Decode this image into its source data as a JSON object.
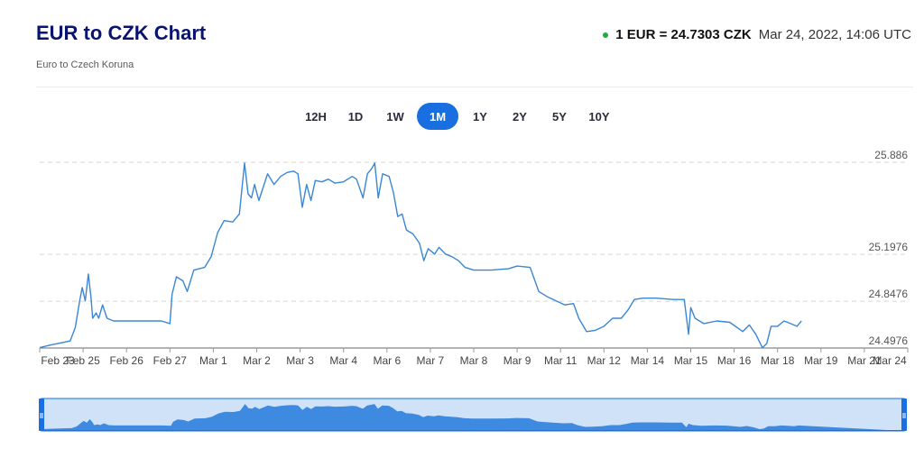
{
  "header": {
    "title": "EUR to CZK Chart",
    "subtitle": "Euro to Czech Koruna",
    "rate_value": "1 EUR = 24.7303 CZK",
    "rate_time": "Mar 24, 2022, 14:06 UTC"
  },
  "range_buttons": [
    {
      "label": "12H",
      "active": false
    },
    {
      "label": "1D",
      "active": false
    },
    {
      "label": "1W",
      "active": false
    },
    {
      "label": "1M",
      "active": true
    },
    {
      "label": "1Y",
      "active": false
    },
    {
      "label": "2Y",
      "active": false
    },
    {
      "label": "5Y",
      "active": false
    },
    {
      "label": "10Y",
      "active": false
    }
  ],
  "colors": {
    "line": "#3a86d4",
    "accent": "#1a6fe0",
    "navigator_fill": "#3d8ae0",
    "navigator_bg": "#cfe2f8",
    "live_dot": "#1fae3c"
  },
  "chart_data": {
    "type": "line",
    "title": "EUR to CZK Chart",
    "xlabel": "",
    "ylabel": "",
    "ylim": [
      24.4976,
      25.886
    ],
    "y_ticks": [
      "25.886",
      "25.1976",
      "24.8476",
      "24.4976"
    ],
    "x_ticks": [
      "Feb 23",
      "Feb 25",
      "Feb 26",
      "Feb 27",
      "Mar 1",
      "Mar 2",
      "Mar 3",
      "Mar 4",
      "Mar 6",
      "Mar 7",
      "Mar 8",
      "Mar 9",
      "Mar 11",
      "Mar 12",
      "Mar 14",
      "Mar 15",
      "Mar 16",
      "Mar 18",
      "Mar 19",
      "Mar 21",
      "Mar 24"
    ],
    "grid": true,
    "series": [
      {
        "values": [
          [
            0,
            24.5
          ],
          [
            0.25,
            24.52
          ],
          [
            0.7,
            24.55
          ],
          [
            0.82,
            24.65
          ],
          [
            0.92,
            24.85
          ],
          [
            0.98,
            24.95
          ],
          [
            1.05,
            24.85
          ],
          [
            1.12,
            25.05
          ],
          [
            1.18,
            24.88
          ],
          [
            1.22,
            24.72
          ],
          [
            1.3,
            24.76
          ],
          [
            1.36,
            24.72
          ],
          [
            1.45,
            24.82
          ],
          [
            1.55,
            24.72
          ],
          [
            1.7,
            24.7
          ],
          [
            2.3,
            24.7
          ],
          [
            2.8,
            24.7
          ],
          [
            3.0,
            24.68
          ],
          [
            3.05,
            24.9
          ],
          [
            3.15,
            25.03
          ],
          [
            3.3,
            25.0
          ],
          [
            3.4,
            24.92
          ],
          [
            3.55,
            25.08
          ],
          [
            3.8,
            25.1
          ],
          [
            3.95,
            25.18
          ],
          [
            4.1,
            25.36
          ],
          [
            4.25,
            25.45
          ],
          [
            4.45,
            25.44
          ],
          [
            4.6,
            25.5
          ],
          [
            4.72,
            25.88
          ],
          [
            4.8,
            25.65
          ],
          [
            4.88,
            25.62
          ],
          [
            4.95,
            25.72
          ],
          [
            5.05,
            25.6
          ],
          [
            5.15,
            25.7
          ],
          [
            5.25,
            25.8
          ],
          [
            5.4,
            25.72
          ],
          [
            5.55,
            25.78
          ],
          [
            5.7,
            25.81
          ],
          [
            5.85,
            25.82
          ],
          [
            5.95,
            25.8
          ],
          [
            6.05,
            25.55
          ],
          [
            6.15,
            25.72
          ],
          [
            6.25,
            25.6
          ],
          [
            6.35,
            25.75
          ],
          [
            6.5,
            25.74
          ],
          [
            6.65,
            25.76
          ],
          [
            6.8,
            25.73
          ],
          [
            7.0,
            25.74
          ],
          [
            7.2,
            25.78
          ],
          [
            7.3,
            25.76
          ],
          [
            7.45,
            25.62
          ],
          [
            7.55,
            25.8
          ],
          [
            7.65,
            25.84
          ],
          [
            7.72,
            25.88
          ],
          [
            7.8,
            25.62
          ],
          [
            7.9,
            25.8
          ],
          [
            8.05,
            25.78
          ],
          [
            8.15,
            25.66
          ],
          [
            8.25,
            25.48
          ],
          [
            8.35,
            25.5
          ],
          [
            8.45,
            25.38
          ],
          [
            8.6,
            25.35
          ],
          [
            8.75,
            25.28
          ],
          [
            8.85,
            25.15
          ],
          [
            8.95,
            25.24
          ],
          [
            9.1,
            25.2
          ],
          [
            9.2,
            25.25
          ],
          [
            9.35,
            25.2
          ],
          [
            9.5,
            25.18
          ],
          [
            9.65,
            25.15
          ],
          [
            9.8,
            25.1
          ],
          [
            10.0,
            25.08
          ],
          [
            10.4,
            25.08
          ],
          [
            10.8,
            25.09
          ],
          [
            11.0,
            25.11
          ],
          [
            11.3,
            25.1
          ],
          [
            11.5,
            24.92
          ],
          [
            11.7,
            24.88
          ],
          [
            11.9,
            24.85
          ],
          [
            12.1,
            24.82
          ],
          [
            12.3,
            24.83
          ],
          [
            12.42,
            24.72
          ],
          [
            12.6,
            24.62
          ],
          [
            12.8,
            24.63
          ],
          [
            13.0,
            24.66
          ],
          [
            13.2,
            24.72
          ],
          [
            13.4,
            24.72
          ],
          [
            13.55,
            24.78
          ],
          [
            13.7,
            24.86
          ],
          [
            13.9,
            24.87
          ],
          [
            14.2,
            24.87
          ],
          [
            14.6,
            24.86
          ],
          [
            14.85,
            24.86
          ],
          [
            14.95,
            24.6
          ],
          [
            15.0,
            24.8
          ],
          [
            15.1,
            24.72
          ],
          [
            15.3,
            24.68
          ],
          [
            15.6,
            24.7
          ],
          [
            15.9,
            24.69
          ],
          [
            16.2,
            24.62
          ],
          [
            16.35,
            24.67
          ],
          [
            16.5,
            24.6
          ],
          [
            16.65,
            24.5
          ],
          [
            16.75,
            24.53
          ],
          [
            16.85,
            24.66
          ],
          [
            17.0,
            24.66
          ],
          [
            17.15,
            24.7
          ],
          [
            17.3,
            24.68
          ],
          [
            17.45,
            24.66
          ],
          [
            17.55,
            24.7
          ]
        ]
      }
    ]
  }
}
